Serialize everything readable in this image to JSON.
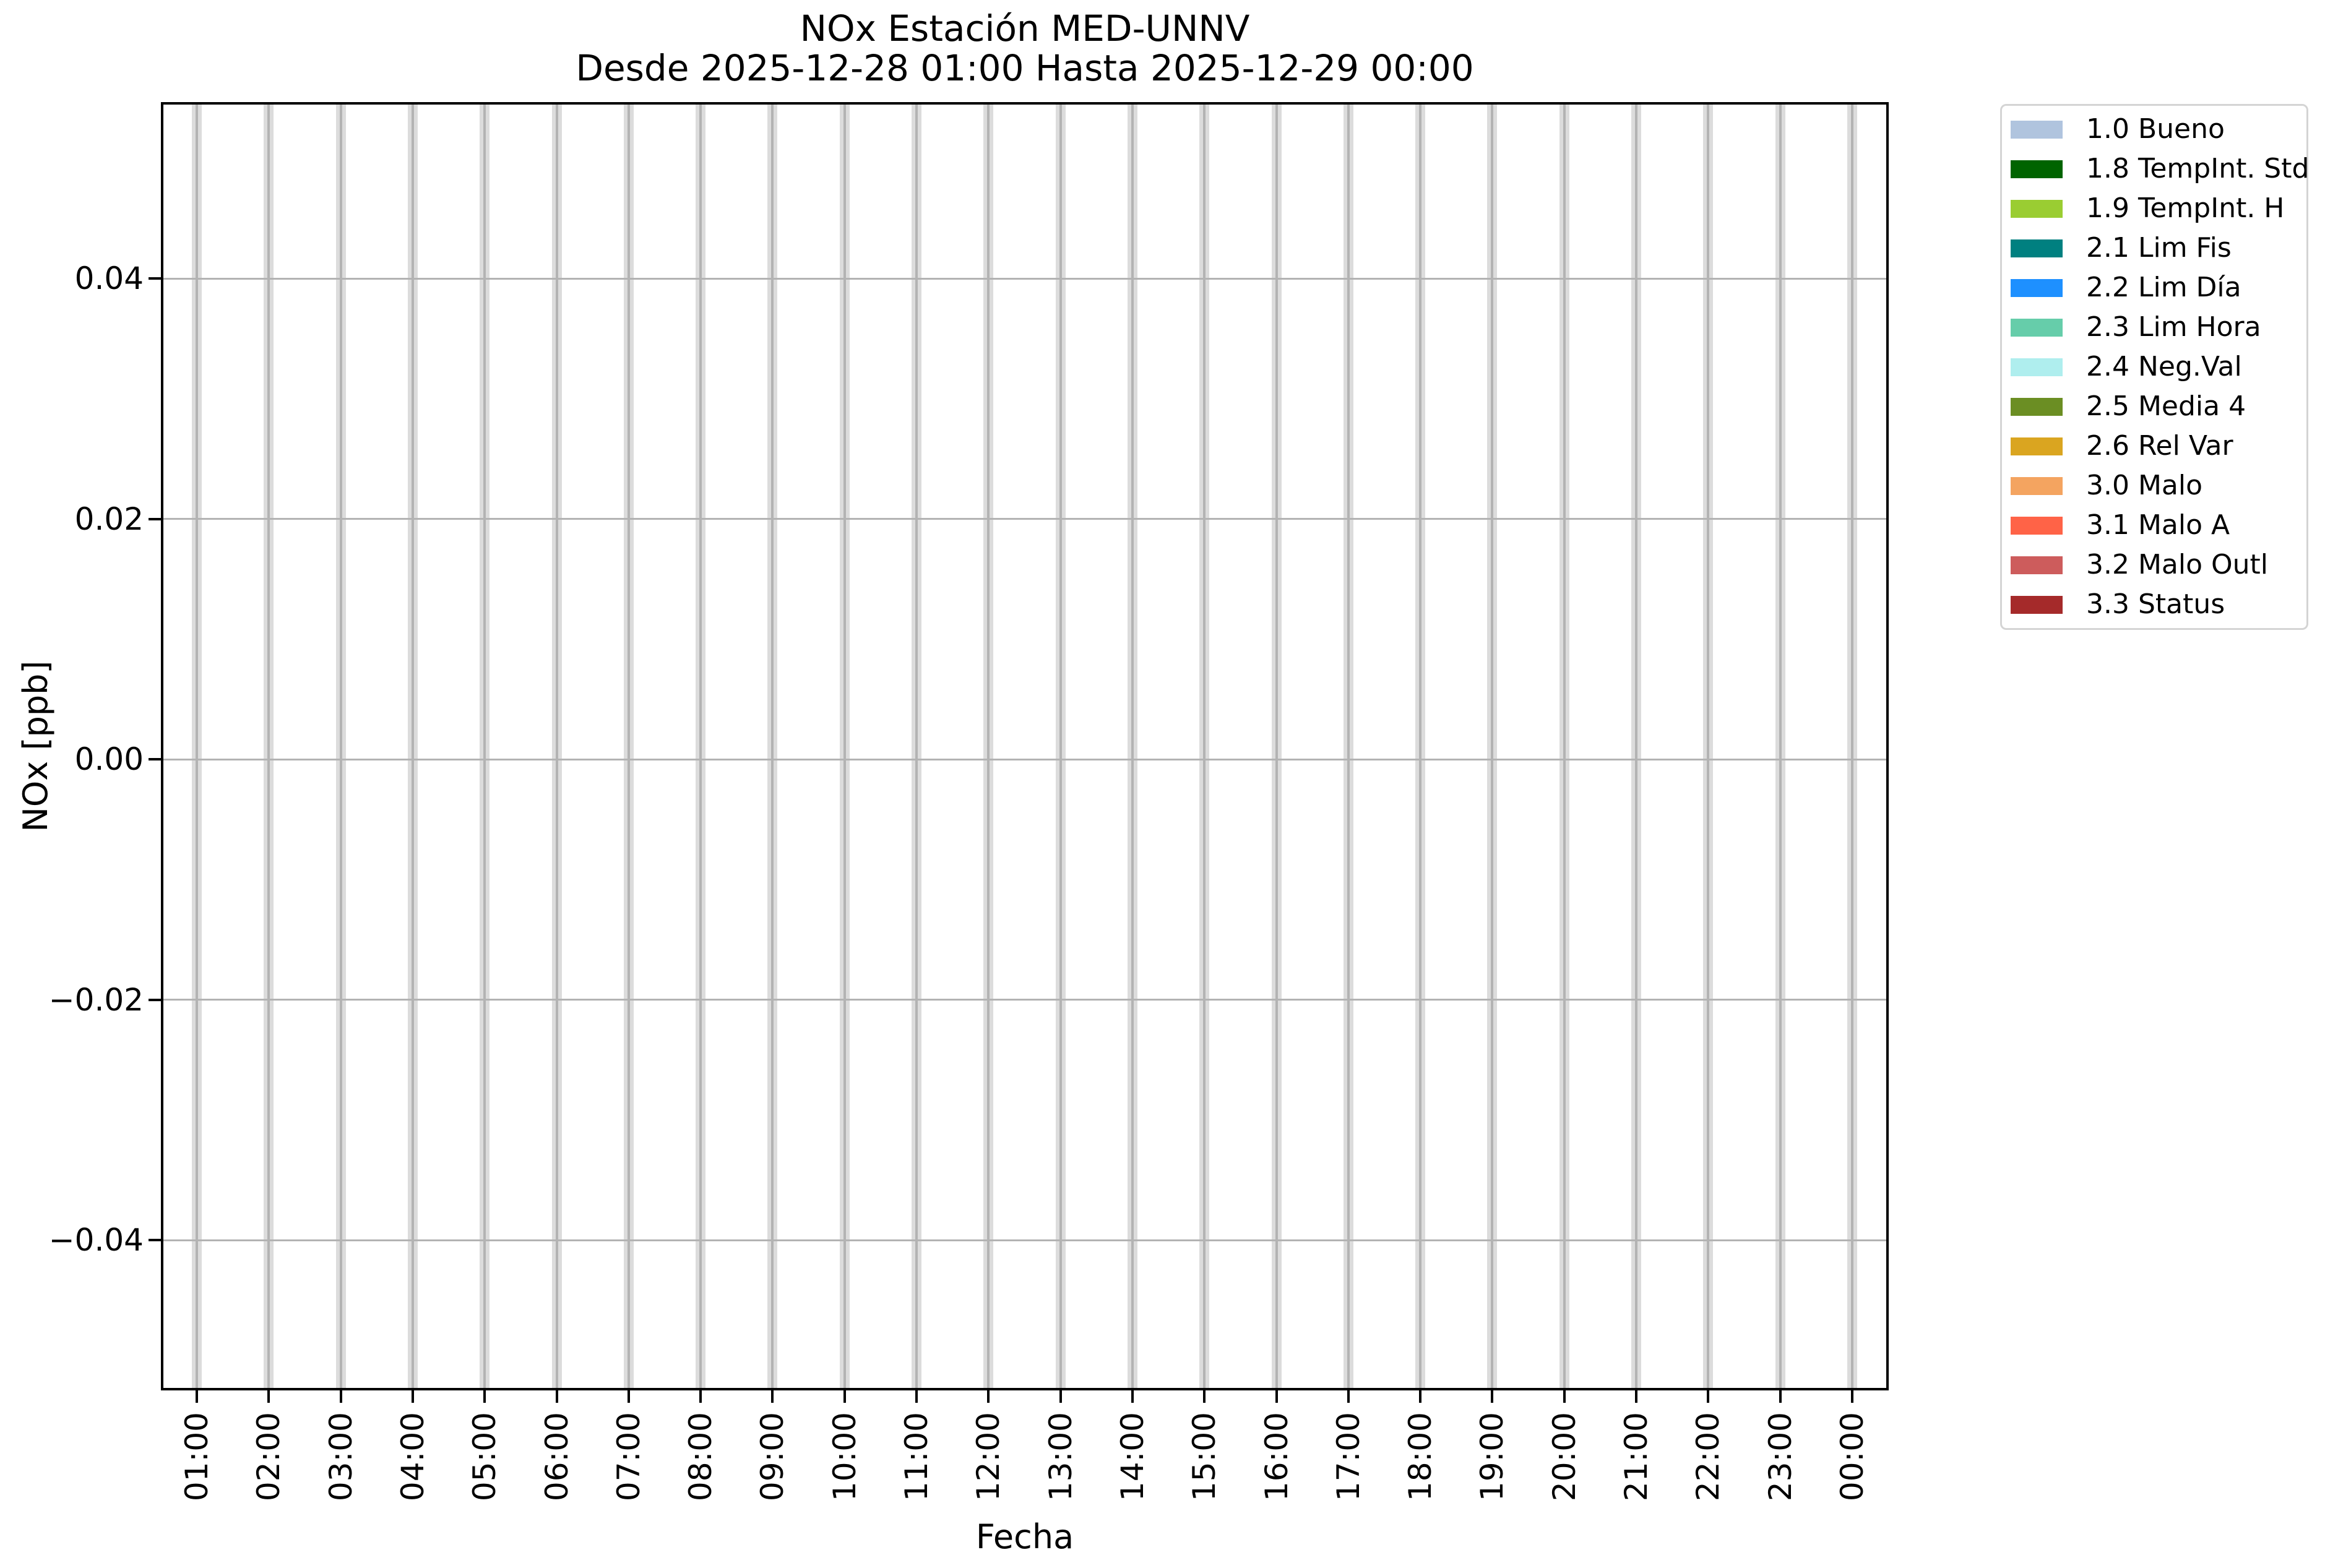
{
  "chart_data": {
    "type": "bar",
    "title": "NOx Estación MED-UNNV",
    "subtitle": "Desde 2025-12-28 01:00 Hasta 2025-12-29 00:00",
    "xlabel": "Fecha",
    "ylabel": "NOx [ppb]",
    "x_tick_labels": [
      "01:00",
      "02:00",
      "03:00",
      "04:00",
      "05:00",
      "06:00",
      "07:00",
      "08:00",
      "09:00",
      "10:00",
      "11:00",
      "12:00",
      "13:00",
      "14:00",
      "15:00",
      "16:00",
      "17:00",
      "18:00",
      "19:00",
      "20:00",
      "21:00",
      "22:00",
      "23:00",
      "00:00"
    ],
    "x_tick_rotation_deg": 90,
    "y_tick_labels": [
      "0.04",
      "0.02",
      "0.00",
      "−0.02",
      "−0.04"
    ],
    "y_tick_values": [
      0.04,
      0.02,
      0.0,
      -0.02,
      -0.04
    ],
    "ylim": [
      -0.0525,
      0.0547
    ],
    "grid": true,
    "grid_color": "#b3b3b3",
    "columns": {
      "description": "full-height light gray column at every hourly tick; no colored flag data plotted",
      "color": "#dcdcdc",
      "count": 24,
      "full_height": true
    },
    "legend": {
      "position": "outside-upper-right",
      "entries": [
        {
          "label": "1.0 Bueno",
          "color": "#b0c4de"
        },
        {
          "label": "1.8 TempInt. Std",
          "color": "#006400"
        },
        {
          "label": "1.9 TempInt. H",
          "color": "#9acd32"
        },
        {
          "label": "2.1 Lim Fis",
          "color": "#008080"
        },
        {
          "label": "2.2 Lim Día",
          "color": "#1e90ff"
        },
        {
          "label": "2.3 Lim Hora",
          "color": "#66cdaa"
        },
        {
          "label": "2.4 Neg.Val",
          "color": "#afeeee"
        },
        {
          "label": "2.5 Media 4",
          "color": "#6b8e23"
        },
        {
          "label": "2.6 Rel Var",
          "color": "#daa520"
        },
        {
          "label": "3.0 Malo",
          "color": "#f4a460"
        },
        {
          "label": "3.1 Malo A",
          "color": "#ff6347"
        },
        {
          "label": "3.2 Malo Outl",
          "color": "#cd5c5c"
        },
        {
          "label": "3.3 Status",
          "color": "#a52a2a"
        }
      ]
    }
  }
}
